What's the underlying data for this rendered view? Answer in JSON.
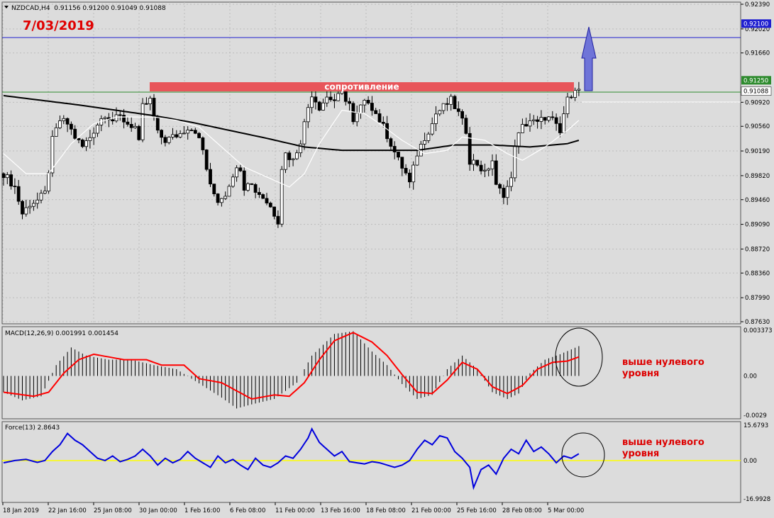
{
  "colors": {
    "background": "#dcdcdc",
    "frame": "#555555",
    "grid": "#bcbcbc",
    "candle": "#000000",
    "ma_slow": "#000000",
    "ma_fast": "#ffffff",
    "resistance_line": "#2e8b2e",
    "target_line": "#1f1fd0",
    "resistance_box": "#e8555a",
    "arrow_fill": "#6f74d8",
    "arrow_stroke": "#1f1fa0",
    "macd_hist": "#000000",
    "macd_signal": "#ff0000",
    "force_line": "#0000dd",
    "zero_line": "#ffff00",
    "annotation_red": "#dd0000",
    "price_tag_bg": "#2e8b2e",
    "price_tag_target_bg": "#1f1fd0",
    "price_tag_current_bg": "#ffffff"
  },
  "header": {
    "symbol_info": "NZDCAD,H4  0.91156 0.91200 0.91049 0.91088",
    "date_label": "7/03/2019",
    "resistance_label": "сопротивление"
  },
  "price_axis": {
    "ticks": [
      "0.92390",
      "0.92020",
      "0.91660",
      "0.90920",
      "0.90560",
      "0.90190",
      "0.89820",
      "0.89460",
      "0.89090",
      "0.88720",
      "0.88360",
      "0.87990",
      "0.87630"
    ],
    "tags": [
      {
        "name": "target-price-tag",
        "text": "0.92100",
        "style": "target"
      },
      {
        "name": "resistance-price-tag",
        "text": "0.91250",
        "style": "resistance"
      },
      {
        "name": "current-price-tag",
        "text": "0.91088",
        "style": "current"
      }
    ]
  },
  "time_axis": {
    "labels": [
      "18 Jan 2019",
      "22 Jan 16:00",
      "25 Jan 08:00",
      "30 Jan 00:00",
      "1 Feb 16:00",
      "6 Feb 08:00",
      "11 Feb 00:00",
      "13 Feb 16:00",
      "18 Feb 08:00",
      "21 Feb 00:00",
      "25 Feb 16:00",
      "28 Feb 08:00",
      "5 Mar 00:00"
    ]
  },
  "macd_panel": {
    "label": "MACD(12,26,9) 0.001991 0.001454",
    "ticks": [
      "0.003373",
      "0.00",
      "-0.0029"
    ],
    "annotation_line1": "выше нулевого",
    "annotation_line2": "уровня"
  },
  "force_panel": {
    "label": "Force(13) 2.8643",
    "ticks": [
      "15.6793",
      "0.00",
      "-16.9928"
    ],
    "annotation_line1": "выше нулевого",
    "annotation_line2": "уровня"
  },
  "chart_data": {
    "type": "candlestick",
    "symbol": "NZDCAD",
    "timeframe": "H4",
    "price_range": [
      0.8763,
      0.9239
    ],
    "resistance_level": 0.9125,
    "target_level": 0.921,
    "current_price": 0.91088,
    "close_path": [
      [
        0,
        0.8985
      ],
      [
        3,
        0.8965
      ],
      [
        5,
        0.8925
      ],
      [
        7,
        0.894
      ],
      [
        9,
        0.8945
      ],
      [
        11,
        0.8955
      ],
      [
        12,
        0.899
      ],
      [
        13,
        0.9035
      ],
      [
        15,
        0.9065
      ],
      [
        17,
        0.906
      ],
      [
        19,
        0.904
      ],
      [
        21,
        0.9025
      ],
      [
        23,
        0.904
      ],
      [
        25,
        0.906
      ],
      [
        27,
        0.9075
      ],
      [
        29,
        0.9065
      ],
      [
        31,
        0.907
      ],
      [
        33,
        0.906
      ],
      [
        35,
        0.9055
      ],
      [
        36,
        0.903
      ],
      [
        37,
        0.9085
      ],
      [
        38,
        0.909
      ],
      [
        39,
        0.9095
      ],
      [
        40,
        0.907
      ],
      [
        41,
        0.9045
      ],
      [
        43,
        0.9035
      ],
      [
        45,
        0.904
      ],
      [
        47,
        0.9045
      ],
      [
        49,
        0.9055
      ],
      [
        51,
        0.905
      ],
      [
        53,
        0.902
      ],
      [
        55,
        0.8965
      ],
      [
        57,
        0.8945
      ],
      [
        59,
        0.8955
      ],
      [
        61,
        0.8985
      ],
      [
        63,
        0.8995
      ],
      [
        64,
        0.8965
      ],
      [
        65,
        0.8975
      ],
      [
        67,
        0.896
      ],
      [
        69,
        0.895
      ],
      [
        71,
        0.8935
      ],
      [
        73,
        0.8915
      ],
      [
        74,
        0.8995
      ],
      [
        75,
        0.9015
      ],
      [
        77,
        0.9005
      ],
      [
        79,
        0.9035
      ],
      [
        81,
        0.9085
      ],
      [
        82,
        0.9105
      ],
      [
        84,
        0.9085
      ],
      [
        86,
        0.91
      ],
      [
        88,
        0.9095
      ],
      [
        90,
        0.9105
      ],
      [
        92,
        0.909
      ],
      [
        93,
        0.906
      ],
      [
        95,
        0.9085
      ],
      [
        97,
        0.9095
      ],
      [
        99,
        0.9075
      ],
      [
        101,
        0.9055
      ],
      [
        103,
        0.903
      ],
      [
        105,
        0.9005
      ],
      [
        107,
        0.8985
      ],
      [
        108,
        0.897
      ],
      [
        110,
        0.9015
      ],
      [
        112,
        0.904
      ],
      [
        114,
        0.906
      ],
      [
        115,
        0.9075
      ],
      [
        117,
        0.9085
      ],
      [
        119,
        0.9095
      ],
      [
        121,
        0.9075
      ],
      [
        123,
        0.905
      ],
      [
        124,
        0.9005
      ],
      [
        126,
        0.9
      ],
      [
        128,
        0.8985
      ],
      [
        130,
        0.9005
      ],
      [
        131,
        0.8965
      ],
      [
        133,
        0.8955
      ],
      [
        135,
        0.8975
      ],
      [
        136,
        0.903
      ],
      [
        138,
        0.9055
      ],
      [
        140,
        0.9065
      ],
      [
        142,
        0.906
      ],
      [
        144,
        0.907
      ],
      [
        146,
        0.9065
      ],
      [
        148,
        0.9045
      ],
      [
        149,
        0.9075
      ],
      [
        150,
        0.9095
      ],
      [
        151,
        0.9105
      ],
      [
        152,
        0.9115
      ],
      [
        153,
        0.9109
      ]
    ],
    "ma_slow_path": [
      [
        0,
        0.9102
      ],
      [
        10,
        0.9095
      ],
      [
        20,
        0.9088
      ],
      [
        30,
        0.908
      ],
      [
        40,
        0.9072
      ],
      [
        50,
        0.9062
      ],
      [
        60,
        0.905
      ],
      [
        70,
        0.9038
      ],
      [
        80,
        0.9025
      ],
      [
        90,
        0.902
      ],
      [
        100,
        0.902
      ],
      [
        110,
        0.902
      ],
      [
        120,
        0.9028
      ],
      [
        130,
        0.9028
      ],
      [
        140,
        0.9025
      ],
      [
        150,
        0.903
      ],
      [
        153,
        0.9035
      ]
    ],
    "ma_fast_path": [
      [
        0,
        0.9015
      ],
      [
        6,
        0.8985
      ],
      [
        12,
        0.8985
      ],
      [
        18,
        0.903
      ],
      [
        24,
        0.906
      ],
      [
        30,
        0.907
      ],
      [
        40,
        0.907
      ],
      [
        46,
        0.9065
      ],
      [
        52,
        0.9055
      ],
      [
        58,
        0.9025
      ],
      [
        64,
        0.8995
      ],
      [
        70,
        0.898
      ],
      [
        76,
        0.8965
      ],
      [
        80,
        0.8985
      ],
      [
        84,
        0.903
      ],
      [
        90,
        0.908
      ],
      [
        96,
        0.9075
      ],
      [
        100,
        0.906
      ],
      [
        106,
        0.9035
      ],
      [
        112,
        0.9015
      ],
      [
        118,
        0.902
      ],
      [
        122,
        0.904
      ],
      [
        128,
        0.9035
      ],
      [
        134,
        0.9015
      ],
      [
        138,
        0.9005
      ],
      [
        144,
        0.9025
      ],
      [
        150,
        0.905
      ],
      [
        153,
        0.9065
      ]
    ],
    "macd": {
      "range": [
        -0.0029,
        0.003373
      ],
      "hist_path": [
        [
          0,
          -0.0012
        ],
        [
          5,
          -0.0018
        ],
        [
          10,
          -0.0015
        ],
        [
          14,
          0.0008
        ],
        [
          18,
          0.0021
        ],
        [
          22,
          0.0015
        ],
        [
          28,
          0.0012
        ],
        [
          34,
          0.0012
        ],
        [
          40,
          0.0008
        ],
        [
          46,
          0.0005
        ],
        [
          50,
          -0.0002
        ],
        [
          54,
          -0.0009
        ],
        [
          58,
          -0.0016
        ],
        [
          62,
          -0.0024
        ],
        [
          66,
          -0.0021
        ],
        [
          72,
          -0.0017
        ],
        [
          78,
          -0.0005
        ],
        [
          82,
          0.0015
        ],
        [
          88,
          0.0031
        ],
        [
          93,
          0.0033
        ],
        [
          98,
          0.0018
        ],
        [
          102,
          0.0008
        ],
        [
          106,
          -0.0006
        ],
        [
          110,
          -0.0017
        ],
        [
          114,
          -0.0014
        ],
        [
          118,
          0.0005
        ],
        [
          122,
          0.0015
        ],
        [
          126,
          0.0005
        ],
        [
          130,
          -0.0012
        ],
        [
          134,
          -0.0017
        ],
        [
          137,
          -0.0013
        ],
        [
          140,
          0.0002
        ],
        [
          144,
          0.0012
        ],
        [
          148,
          0.0016
        ],
        [
          153,
          0.0022
        ]
      ],
      "signal_path": [
        [
          0,
          -0.0012
        ],
        [
          8,
          -0.0015
        ],
        [
          12,
          -0.0012
        ],
        [
          16,
          0.0002
        ],
        [
          20,
          0.0012
        ],
        [
          24,
          0.0016
        ],
        [
          28,
          0.0014
        ],
        [
          32,
          0.0012
        ],
        [
          38,
          0.0012
        ],
        [
          42,
          0.0008
        ],
        [
          48,
          0.0008
        ],
        [
          52,
          -0.0002
        ],
        [
          58,
          -0.0005
        ],
        [
          62,
          -0.0011
        ],
        [
          66,
          -0.0017
        ],
        [
          72,
          -0.0014
        ],
        [
          76,
          -0.0015
        ],
        [
          80,
          -0.0005
        ],
        [
          84,
          0.0012
        ],
        [
          88,
          0.0026
        ],
        [
          93,
          0.0032
        ],
        [
          98,
          0.0025
        ],
        [
          102,
          0.0015
        ],
        [
          106,
          0.0001
        ],
        [
          110,
          -0.0012
        ],
        [
          114,
          -0.0013
        ],
        [
          118,
          -0.0003
        ],
        [
          122,
          0.001
        ],
        [
          126,
          0.0005
        ],
        [
          130,
          -0.0008
        ],
        [
          134,
          -0.0013
        ],
        [
          138,
          -0.0007
        ],
        [
          142,
          0.0005
        ],
        [
          146,
          0.001
        ],
        [
          150,
          0.0011
        ],
        [
          153,
          0.0014
        ]
      ]
    },
    "force": {
      "range": [
        -16.9928,
        15.6793
      ],
      "path": [
        [
          0,
          -1
        ],
        [
          3,
          0
        ],
        [
          6,
          0.5
        ],
        [
          9,
          -0.8
        ],
        [
          11,
          0
        ],
        [
          13,
          4
        ],
        [
          15,
          7
        ],
        [
          17,
          12
        ],
        [
          19,
          9
        ],
        [
          21,
          7
        ],
        [
          23,
          4
        ],
        [
          25,
          1
        ],
        [
          27,
          0
        ],
        [
          29,
          2
        ],
        [
          31,
          -0.5
        ],
        [
          33,
          0.5
        ],
        [
          35,
          2
        ],
        [
          37,
          5
        ],
        [
          39,
          2
        ],
        [
          41,
          -2
        ],
        [
          43,
          1
        ],
        [
          45,
          -1
        ],
        [
          47,
          0.5
        ],
        [
          49,
          4
        ],
        [
          51,
          1
        ],
        [
          53,
          -1
        ],
        [
          55,
          -3
        ],
        [
          57,
          2
        ],
        [
          59,
          -1
        ],
        [
          61,
          0.5
        ],
        [
          63,
          -2
        ],
        [
          65,
          -4
        ],
        [
          67,
          1
        ],
        [
          69,
          -2
        ],
        [
          71,
          -3
        ],
        [
          73,
          -1
        ],
        [
          75,
          2
        ],
        [
          77,
          1
        ],
        [
          79,
          5
        ],
        [
          81,
          10
        ],
        [
          82,
          14
        ],
        [
          84,
          8
        ],
        [
          86,
          5
        ],
        [
          88,
          2
        ],
        [
          90,
          4
        ],
        [
          92,
          -0.5
        ],
        [
          94,
          -1
        ],
        [
          96,
          -1.5
        ],
        [
          98,
          -0.5
        ],
        [
          100,
          -1
        ],
        [
          102,
          -2
        ],
        [
          104,
          -3
        ],
        [
          106,
          -2
        ],
        [
          108,
          0
        ],
        [
          110,
          5
        ],
        [
          112,
          9
        ],
        [
          114,
          7
        ],
        [
          116,
          11
        ],
        [
          118,
          10
        ],
        [
          120,
          4
        ],
        [
          122,
          1
        ],
        [
          124,
          -3
        ],
        [
          125,
          -12
        ],
        [
          127,
          -4
        ],
        [
          129,
          -2
        ],
        [
          131,
          -6
        ],
        [
          133,
          1
        ],
        [
          135,
          5
        ],
        [
          137,
          3
        ],
        [
          139,
          9
        ],
        [
          141,
          4
        ],
        [
          143,
          6
        ],
        [
          145,
          3
        ],
        [
          147,
          -1
        ],
        [
          149,
          2
        ],
        [
          151,
          1
        ],
        [
          153,
          3
        ]
      ]
    }
  }
}
